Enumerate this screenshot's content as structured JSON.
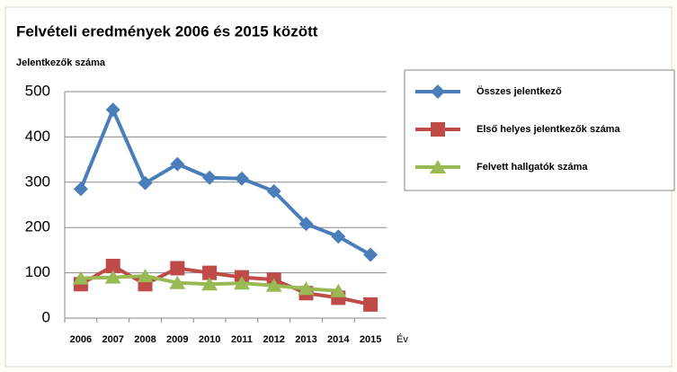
{
  "chart_data": {
    "type": "line",
    "title": "Felvételi eredmények 2006 és 2015 között",
    "y_label": "Jelentkezők száma",
    "x_label": "Év",
    "categories": [
      "2006",
      "2007",
      "2008",
      "2009",
      "2010",
      "2011",
      "2012",
      "2013",
      "2014",
      "2015"
    ],
    "series": [
      {
        "name": "Összes jelentkező",
        "color": "#4a7ebb",
        "marker": "diamond",
        "values": [
          285,
          460,
          298,
          340,
          310,
          308,
          280,
          208,
          180,
          140
        ]
      },
      {
        "name": "Első helyes jelentkezők száma",
        "color": "#be4b48",
        "marker": "square",
        "values": [
          75,
          115,
          75,
          110,
          100,
          90,
          85,
          55,
          45,
          30
        ]
      },
      {
        "name": "Felvett hallgatók  száma",
        "color": "#98b954",
        "marker": "triangle",
        "values": [
          88,
          90,
          93,
          78,
          75,
          77,
          72,
          65,
          60,
          null
        ]
      }
    ],
    "ylim": [
      0,
      500
    ],
    "yticks": [
      0,
      100,
      200,
      300,
      400,
      500
    ],
    "grid": true,
    "legend": "right"
  }
}
